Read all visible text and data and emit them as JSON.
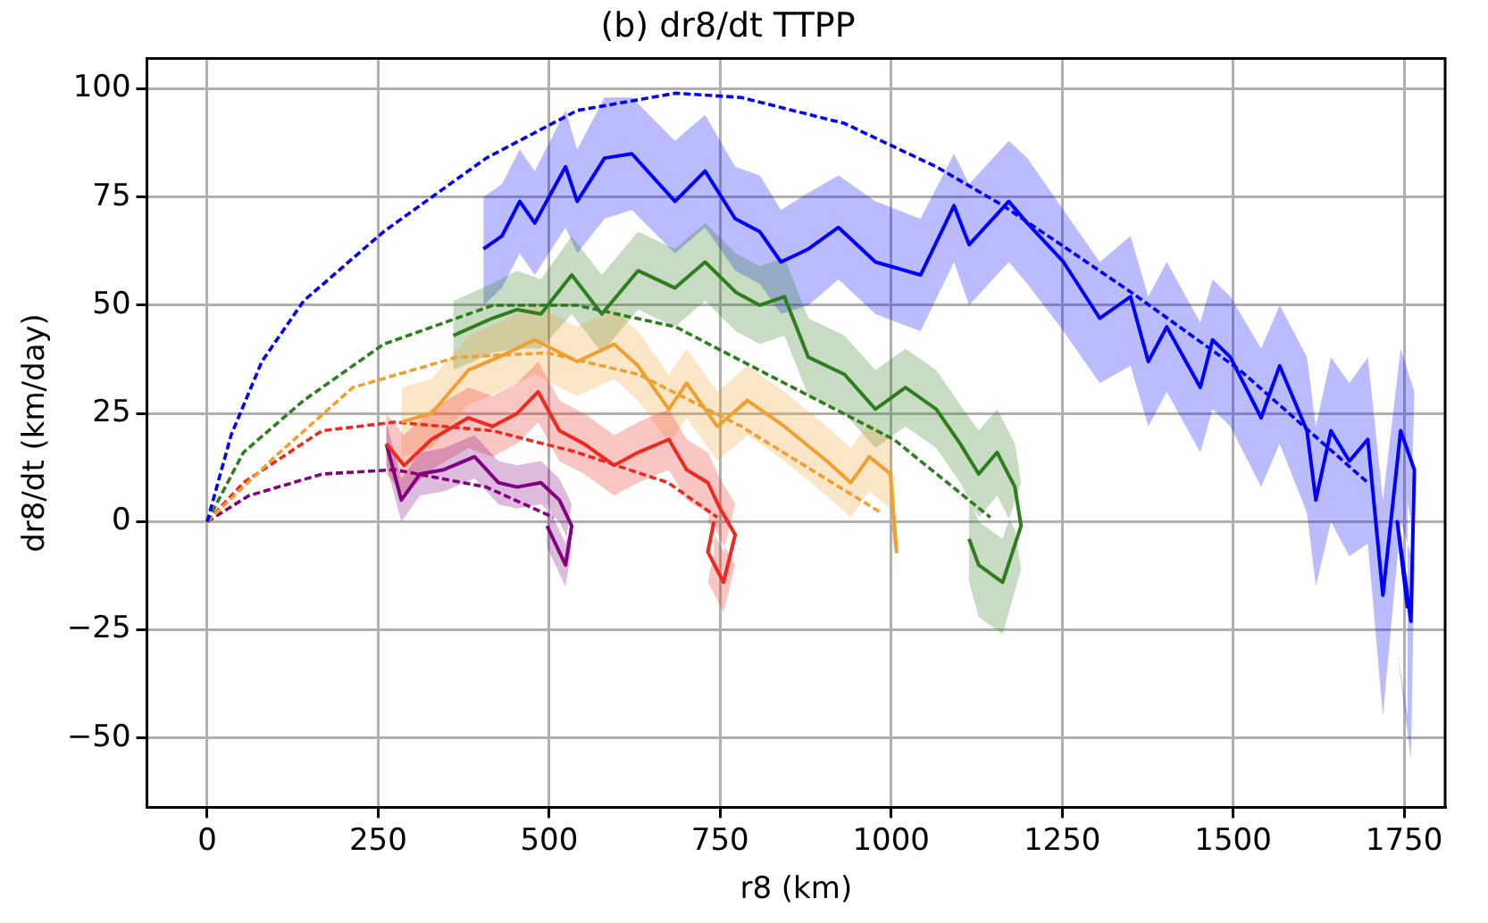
{
  "chart_data": {
    "type": "line",
    "title": "(b) dr8/dt TTPP",
    "xlabel": "r8 (km)",
    "ylabel": "dr8/dt (km/day)",
    "xlim": [
      -88,
      1810
    ],
    "ylim": [
      -66,
      107
    ],
    "xticks": [
      0,
      250,
      500,
      750,
      1000,
      1250,
      1500,
      1750
    ],
    "yticks": [
      -50,
      -25,
      0,
      25,
      50,
      75,
      100
    ],
    "grid": true,
    "legend": false,
    "marker": "none",
    "series": [
      {
        "color": "#0000ff",
        "line_style": "solid",
        "x": [
          404,
          431,
          457,
          479,
          524,
          541,
          581,
          621,
          684,
          728,
          772,
          808,
          839,
          879,
          923,
          977,
          1043,
          1092,
          1114,
          1172,
          1199,
          1252,
          1305,
          1350,
          1376,
          1403,
          1452,
          1470,
          1496,
          1541,
          1568,
          1608,
          1621,
          1643,
          1670,
          1697,
          1719,
          1745,
          1765,
          1760,
          1740,
          1755
        ],
        "values": [
          63,
          66,
          74,
          69,
          82,
          74,
          84,
          85,
          74,
          81,
          70,
          67,
          60,
          63,
          68,
          60,
          57,
          73,
          64,
          74,
          69,
          60,
          47,
          52,
          37,
          45,
          31,
          42,
          38,
          24,
          36,
          21,
          5,
          21,
          14,
          19,
          -17,
          21,
          12,
          -23,
          0,
          -20
        ],
        "upper": [
          75,
          78,
          86,
          81,
          95,
          86,
          98,
          98,
          88,
          94,
          82,
          80,
          72,
          76,
          80,
          74,
          70,
          85,
          78,
          88,
          84,
          72,
          60,
          66,
          52,
          60,
          46,
          56,
          52,
          40,
          50,
          38,
          22,
          38,
          32,
          38,
          5,
          40,
          30,
          0,
          18,
          5
        ],
        "lower": [
          50,
          54,
          62,
          57,
          68,
          62,
          70,
          72,
          62,
          68,
          58,
          55,
          48,
          50,
          56,
          48,
          44,
          60,
          50,
          60,
          55,
          44,
          32,
          36,
          22,
          30,
          16,
          26,
          22,
          8,
          18,
          2,
          -15,
          0,
          -8,
          -5,
          -45,
          0,
          -10,
          -55,
          -30,
          -45
        ]
      },
      {
        "color": "#2e7d1e",
        "line_style": "solid",
        "x": [
          360,
          417,
          453,
          488,
          533,
          577,
          630,
          684,
          728,
          773,
          808,
          844,
          879,
          932,
          977,
          1021,
          1066,
          1101,
          1128,
          1155,
          1181,
          1190,
          1163,
          1128,
          1114
        ],
        "values": [
          43,
          47,
          49,
          48,
          57,
          48,
          58,
          54,
          60,
          53,
          50,
          52,
          38,
          34,
          26,
          31,
          26,
          18,
          11,
          16,
          8,
          -1,
          -14,
          -10,
          -4
        ],
        "upper": [
          51,
          55,
          58,
          56,
          66,
          57,
          67,
          63,
          69,
          62,
          59,
          61,
          47,
          43,
          35,
          40,
          35,
          27,
          21,
          26,
          18,
          9,
          -4,
          0,
          6
        ],
        "lower": [
          35,
          39,
          40,
          40,
          48,
          39,
          49,
          45,
          51,
          44,
          41,
          43,
          29,
          25,
          17,
          22,
          17,
          9,
          1,
          6,
          -2,
          -11,
          -26,
          -22,
          -14
        ]
      },
      {
        "color": "#f0a030",
        "line_style": "solid",
        "x": [
          284,
          328,
          382,
          426,
          479,
          541,
          595,
          630,
          675,
          701,
          746,
          790,
          844,
          906,
          941,
          968,
          999,
          1008,
          1004
        ],
        "values": [
          23,
          25,
          35,
          38,
          42,
          37,
          41,
          36,
          26,
          32,
          22,
          28,
          22,
          14,
          9,
          15,
          11,
          -7,
          -1
        ],
        "upper": [
          31,
          33,
          43,
          46,
          50,
          45,
          49,
          44,
          34,
          40,
          30,
          36,
          30,
          22,
          17,
          23,
          19,
          1,
          7
        ],
        "lower": [
          15,
          17,
          27,
          30,
          34,
          29,
          33,
          28,
          18,
          24,
          14,
          20,
          14,
          6,
          1,
          7,
          3,
          -15,
          -9
        ]
      },
      {
        "color": "#ee2a20",
        "line_style": "solid",
        "x": [
          262,
          288,
          328,
          382,
          417,
          453,
          484,
          515,
          551,
          595,
          630,
          675,
          701,
          732,
          750,
          772,
          755,
          732,
          741
        ],
        "values": [
          18,
          13,
          19,
          24,
          22,
          25,
          30,
          21,
          18,
          13,
          16,
          19,
          12,
          9,
          3,
          -3,
          -14,
          -7,
          0
        ],
        "upper": [
          25,
          20,
          26,
          31,
          29,
          32,
          37,
          28,
          25,
          20,
          23,
          26,
          19,
          16,
          10,
          4,
          -7,
          0,
          7
        ],
        "lower": [
          11,
          6,
          12,
          17,
          15,
          18,
          23,
          14,
          11,
          6,
          9,
          12,
          5,
          2,
          -4,
          -10,
          -21,
          -14,
          -7
        ]
      },
      {
        "color": "#800080",
        "line_style": "solid",
        "x": [
          262,
          284,
          311,
          346,
          391,
          426,
          453,
          488,
          515,
          533,
          524,
          497
        ],
        "values": [
          18,
          5,
          11,
          12,
          15,
          9,
          8,
          9,
          5,
          -1,
          -10,
          -1
        ],
        "upper": [
          23,
          10,
          16,
          17,
          20,
          14,
          13,
          14,
          10,
          4,
          -5,
          4
        ],
        "lower": [
          13,
          0,
          6,
          7,
          10,
          4,
          3,
          4,
          0,
          -6,
          -15,
          -6
        ]
      },
      {
        "color": "#0000ff",
        "line_style": "dashed",
        "x": [
          0,
          35,
          80,
          141,
          258,
          408,
          541,
          685,
          781,
          932,
          1066,
          1164,
          1351,
          1510,
          1697
        ],
        "values": [
          0,
          20,
          37,
          51,
          67,
          84,
          95,
          99,
          98,
          92,
          82,
          73,
          53,
          35,
          9
        ]
      },
      {
        "color": "#2e7d1e",
        "line_style": "dashed",
        "x": [
          0,
          53,
          141,
          258,
          418,
          541,
          685,
          844,
          1004,
          1145
        ],
        "values": [
          0,
          16,
          28,
          41,
          50,
          50,
          45,
          32,
          19,
          1
        ]
      },
      {
        "color": "#f0a030",
        "line_style": "dashed",
        "x": [
          0,
          99,
          213,
          365,
          498,
          631,
          781,
          914,
          986
        ],
        "values": [
          0,
          15,
          31,
          38,
          39,
          34,
          22,
          9,
          2
        ]
      },
      {
        "color": "#ee2a20",
        "line_style": "dashed",
        "x": [
          0,
          53,
          168,
          274,
          418,
          541,
          674,
          746
        ],
        "values": [
          0,
          9,
          21,
          23,
          21,
          16,
          9,
          1
        ]
      },
      {
        "color": "#800080",
        "line_style": "dashed",
        "x": [
          0,
          61,
          168,
          274,
          408,
          506
        ],
        "values": [
          0,
          6,
          11,
          12,
          8,
          1
        ]
      }
    ]
  }
}
